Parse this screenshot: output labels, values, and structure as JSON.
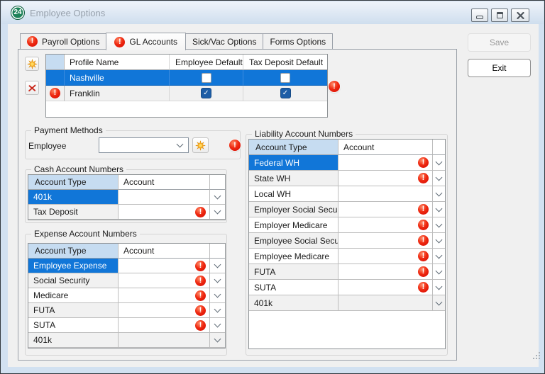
{
  "window": {
    "title": "Employee Options",
    "app_icon_text": "24"
  },
  "titlebar_buttons": [
    "minimize",
    "maximize",
    "close"
  ],
  "action_buttons": {
    "save": "Save",
    "exit": "Exit"
  },
  "tabs": [
    {
      "label": "Payroll Options",
      "error": true,
      "selected": false
    },
    {
      "label": "GL Accounts",
      "error": true,
      "selected": true
    },
    {
      "label": "Sick/Vac Options",
      "error": false,
      "selected": false
    },
    {
      "label": "Forms Options",
      "error": false,
      "selected": false
    }
  ],
  "profile_grid": {
    "columns": [
      "",
      "Profile Name",
      "Employee Default",
      "Tax Deposit Default"
    ],
    "rows": [
      {
        "name": "Nashville",
        "employee_default": false,
        "tax_deposit_default": false,
        "selected": true,
        "error": false
      },
      {
        "name": "Franklin",
        "employee_default": true,
        "tax_deposit_default": true,
        "selected": false,
        "error": true
      }
    ],
    "grid_error": true
  },
  "payment_methods": {
    "title": "Payment Methods",
    "employee_label": "Employee",
    "employee_value": "",
    "error": true
  },
  "account_tables": [
    {
      "id": "cash",
      "title": "Cash Account Numbers",
      "columns": [
        "Account Type",
        "Account"
      ],
      "rows": [
        {
          "type": "401k",
          "account": "",
          "error": false,
          "selected": true
        },
        {
          "type": "Tax Deposit",
          "account": "",
          "error": true,
          "selected": false
        }
      ]
    },
    {
      "id": "expense",
      "title": "Expense Account Numbers",
      "columns": [
        "Account Type",
        "Account"
      ],
      "rows": [
        {
          "type": "Employee Expense",
          "account": "",
          "error": true,
          "selected": true
        },
        {
          "type": "Social Security",
          "account": "",
          "error": true,
          "selected": false
        },
        {
          "type": "Medicare",
          "account": "",
          "error": true,
          "selected": false
        },
        {
          "type": "FUTA",
          "account": "",
          "error": true,
          "selected": false
        },
        {
          "type": "SUTA",
          "account": "",
          "error": true,
          "selected": false
        },
        {
          "type": "401k",
          "account": "",
          "error": false,
          "selected": false
        }
      ]
    },
    {
      "id": "liability",
      "title": "Liability Account Numbers",
      "columns": [
        "Account Type",
        "Account"
      ],
      "rows": [
        {
          "type": "Federal WH",
          "account": "",
          "error": true,
          "selected": true
        },
        {
          "type": "State WH",
          "account": "",
          "error": true,
          "selected": false
        },
        {
          "type": "Local WH",
          "account": "",
          "error": false,
          "selected": false
        },
        {
          "type": "Employer Social Security",
          "account": "",
          "error": true,
          "selected": false
        },
        {
          "type": "Employer Medicare",
          "account": "",
          "error": true,
          "selected": false
        },
        {
          "type": "Employee Social Security",
          "account": "",
          "error": true,
          "selected": false
        },
        {
          "type": "Employee Medicare",
          "account": "",
          "error": true,
          "selected": false
        },
        {
          "type": "FUTA",
          "account": "",
          "error": true,
          "selected": false
        },
        {
          "type": "SUTA",
          "account": "",
          "error": true,
          "selected": false
        },
        {
          "type": "401k",
          "account": "",
          "error": false,
          "selected": false
        }
      ]
    }
  ],
  "icons": {
    "error_glyph": "!",
    "check_glyph": "✓"
  },
  "colors": {
    "selection_blue": "#1176d8",
    "header_blue": "#c6dcf1",
    "error_red": "#d40600",
    "checkbox_blue": "#1d5da6",
    "titlebar_icon_green": "#1e8259"
  }
}
